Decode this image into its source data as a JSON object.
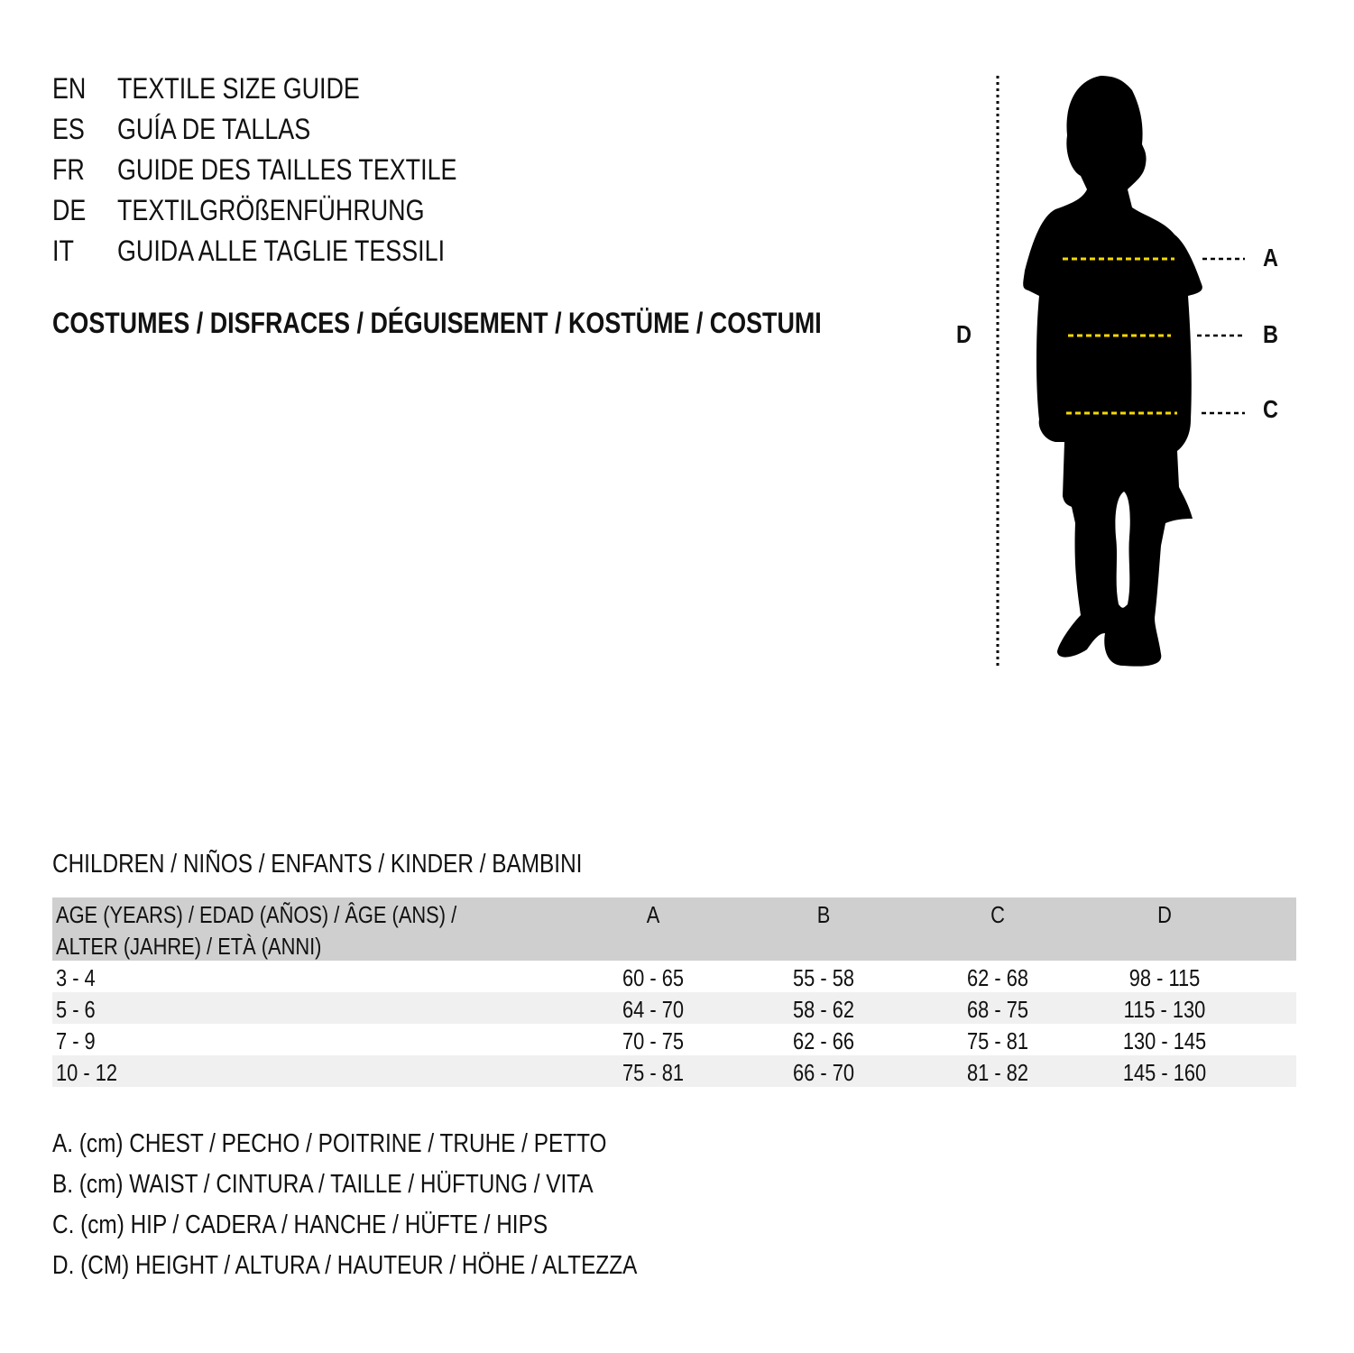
{
  "titles": [
    {
      "code": "EN",
      "text": "TEXTILE SIZE GUIDE"
    },
    {
      "code": "ES",
      "text": "GUÍA DE TALLAS"
    },
    {
      "code": "FR",
      "text": "GUIDE DES TAILLES TEXTILE"
    },
    {
      "code": "DE",
      "text": "TEXTILGRÖßENFÜHRUNG"
    },
    {
      "code": "IT",
      "text": "GUIDA ALLE TAGLIE TESSILI"
    }
  ],
  "category": "COSTUMES / DISFRACES / DÉGUISEMENT / KOSTÜME / COSTUMI",
  "figure": {
    "labels": {
      "a": "A",
      "b": "B",
      "c": "C",
      "d": "D"
    },
    "measure_line_color": "#f5d800"
  },
  "section": "CHILDREN / NIÑOS / ENFANTS / KINDER / BAMBINI",
  "table": {
    "header": {
      "age_line1": "AGE (YEARS) / EDAD (AÑOS) / ÂGE (ANS) /",
      "age_line2": "ALTER (JAHRE) / ETÀ (ANNI)",
      "a": "A",
      "b": "B",
      "c": "C",
      "d": "D"
    },
    "rows": [
      {
        "age": "3 - 4",
        "a": "60 - 65",
        "b": "55 - 58",
        "c": "62 - 68",
        "d": "98 - 115"
      },
      {
        "age": "5 - 6",
        "a": "64 - 70",
        "b": "58 - 62",
        "c": "68 - 75",
        "d": "115 - 130"
      },
      {
        "age": "7 - 9",
        "a": "70 - 75",
        "b": "62 - 66",
        "c": "75 - 81",
        "d": "130 - 145"
      },
      {
        "age": "10 - 12",
        "a": "75 - 81",
        "b": "66 - 70",
        "c": "81 - 82",
        "d": "145 - 160"
      }
    ]
  },
  "legend": [
    "A. (cm) CHEST / PECHO / POITRINE / TRUHE / PETTO",
    "B. (cm) WAIST / CINTURA / TAILLE / HÜFTUNG / VITA",
    "C. (cm) HIP / CADERA / HANCHE / HÜFTE / HIPS",
    "D. (CM) HEIGHT / ALTURA / HAUTEUR / HÖHE / ALTEZZA"
  ]
}
